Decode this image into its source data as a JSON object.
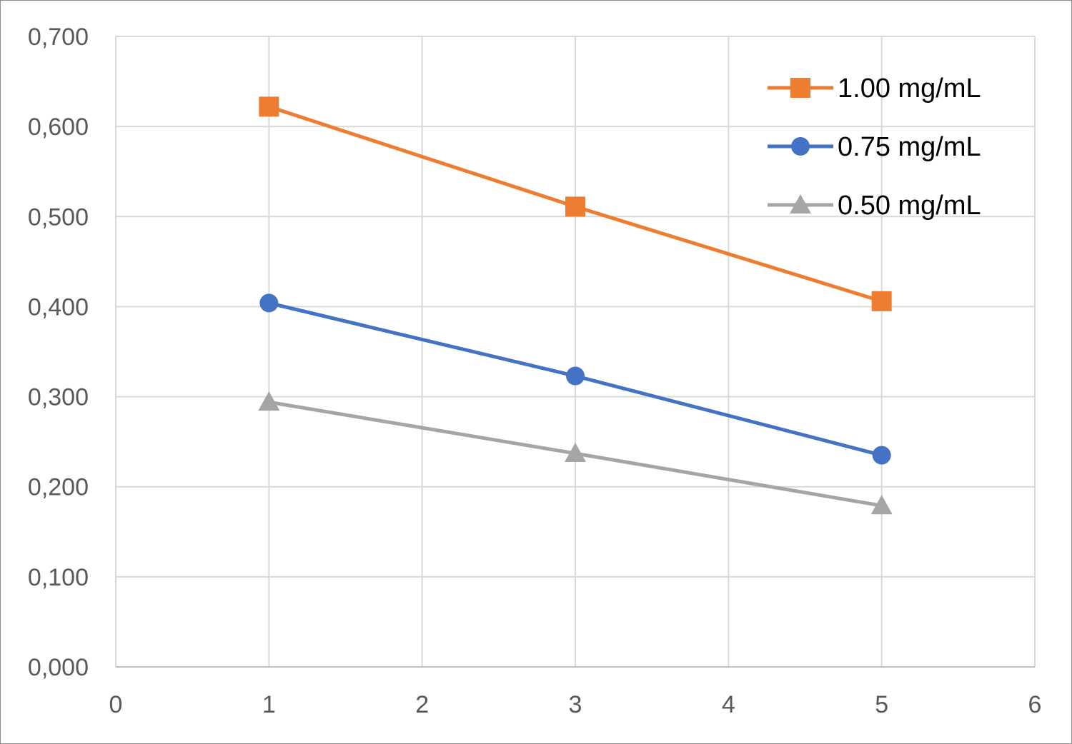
{
  "chart_data": {
    "type": "line",
    "title": "",
    "xlabel": "",
    "ylabel": "",
    "xlim": [
      0,
      6
    ],
    "ylim": [
      0,
      0.7
    ],
    "x_ticks": [
      0,
      1,
      2,
      3,
      4,
      5,
      6
    ],
    "x_tick_labels": [
      "0",
      "1",
      "2",
      "3",
      "4",
      "5",
      "6"
    ],
    "y_ticks": [
      0,
      0.1,
      0.2,
      0.3,
      0.4,
      0.5,
      0.6,
      0.7
    ],
    "y_tick_labels": [
      "0,000",
      "0,100",
      "0,200",
      "0,300",
      "0,400",
      "0,500",
      "0,600",
      "0,700"
    ],
    "grid": true,
    "legend_position": "top-right",
    "series": [
      {
        "name": "1.00 mg/mL",
        "color": "#ED7D31",
        "marker": "square",
        "x": [
          1,
          3,
          5
        ],
        "y": [
          0.622,
          0.511,
          0.406
        ]
      },
      {
        "name": "0.75 mg/mL",
        "color": "#4472C4",
        "marker": "circle",
        "x": [
          1,
          3,
          5
        ],
        "y": [
          0.404,
          0.323,
          0.235
        ]
      },
      {
        "name": "0.50 mg/mL",
        "color": "#A5A5A5",
        "marker": "triangle",
        "x": [
          1,
          3,
          5
        ],
        "y": [
          0.294,
          0.237,
          0.179
        ]
      }
    ]
  }
}
